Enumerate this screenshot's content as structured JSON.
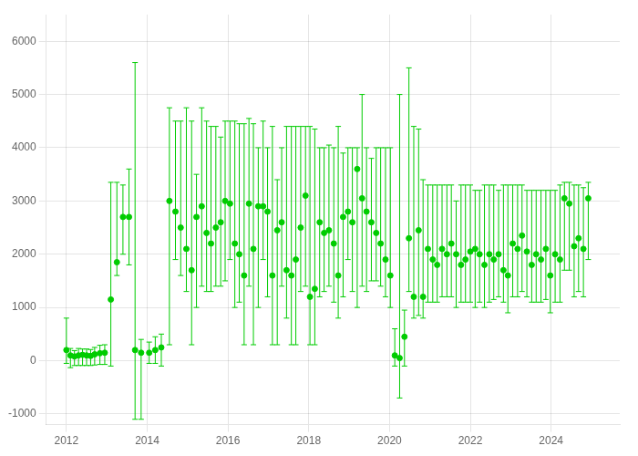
{
  "chart_data": {
    "type": "scatter",
    "x": [
      2012.0,
      2012.1,
      2012.2,
      2012.3,
      2012.4,
      2012.5,
      2012.6,
      2012.7,
      2012.83,
      2012.95,
      2013.1,
      2013.25,
      2013.4,
      2013.55,
      2013.7,
      2013.85,
      2014.05,
      2014.2,
      2014.35,
      2014.55,
      2014.7,
      2014.83,
      2014.97,
      2015.1,
      2015.22,
      2015.35,
      2015.47,
      2015.58,
      2015.7,
      2015.82,
      2015.93,
      2016.05,
      2016.17,
      2016.28,
      2016.4,
      2016.52,
      2016.63,
      2016.75,
      2016.87,
      2016.98,
      2017.1,
      2017.22,
      2017.33,
      2017.45,
      2017.57,
      2017.68,
      2017.8,
      2017.92,
      2018.03,
      2018.15,
      2018.27,
      2018.38,
      2018.5,
      2018.62,
      2018.73,
      2018.85,
      2018.97,
      2019.08,
      2019.2,
      2019.32,
      2019.43,
      2019.55,
      2019.67,
      2019.78,
      2019.9,
      2020.02,
      2020.13,
      2020.25,
      2020.37,
      2020.48,
      2020.6,
      2020.72,
      2020.83,
      2020.95,
      2021.07,
      2021.18,
      2021.3,
      2021.42,
      2021.53,
      2021.65,
      2021.77,
      2021.88,
      2022.0,
      2022.12,
      2022.23,
      2022.35,
      2022.47,
      2022.58,
      2022.7,
      2022.82,
      2022.93,
      2023.05,
      2023.17,
      2023.28,
      2023.4,
      2023.52,
      2023.63,
      2023.75,
      2023.87,
      2023.98,
      2024.1,
      2024.22,
      2024.33,
      2024.45,
      2024.57,
      2024.68,
      2024.8,
      2024.92
    ],
    "values": [
      200,
      100,
      80,
      100,
      110,
      100,
      90,
      120,
      140,
      150,
      1150,
      1850,
      2700,
      2700,
      200,
      150,
      150,
      200,
      250,
      3000,
      2800,
      2500,
      2100,
      1700,
      2700,
      2900,
      2400,
      2200,
      2500,
      2600,
      3000,
      2950,
      2200,
      2000,
      1600,
      2950,
      2100,
      2900,
      2900,
      2800,
      1600,
      2450,
      2600,
      1700,
      1600,
      1900,
      2500,
      3100,
      1200,
      1350,
      2600,
      2400,
      2450,
      2200,
      1600,
      2700,
      2800,
      2600,
      3600,
      3050,
      2800,
      2600,
      2400,
      2200,
      1900,
      1600,
      100,
      50,
      450,
      2300,
      1200,
      2450,
      1200,
      2100,
      1900,
      1800,
      2100,
      2000,
      2200,
      2000,
      1800,
      1900,
      2050,
      2100,
      2000,
      1800,
      2000,
      1900,
      2000,
      1700,
      1600,
      2200,
      2100,
      2350,
      2050,
      1800,
      2000,
      1900,
      2100,
      1600,
      2000,
      1900,
      3050,
      2950,
      2150,
      2300,
      2100,
      3050
    ],
    "yerr_lo": [
      250,
      230,
      170,
      190,
      200,
      190,
      180,
      200,
      210,
      220,
      1250,
      250,
      700,
      900,
      1300,
      1250,
      200,
      250,
      350,
      2700,
      900,
      900,
      800,
      1400,
      1700,
      1500,
      1100,
      900,
      1100,
      1200,
      1500,
      1050,
      1200,
      900,
      1300,
      1550,
      1800,
      1900,
      1000,
      1600,
      1300,
      2150,
      1200,
      900,
      1300,
      1600,
      1200,
      1700,
      900,
      1050,
      1400,
      1100,
      1050,
      1100,
      800,
      1500,
      900,
      1300,
      2600,
      1650,
      1500,
      1100,
      900,
      800,
      700,
      600,
      200,
      750,
      550,
      1000,
      400,
      1600,
      400,
      1000,
      800,
      700,
      900,
      800,
      1000,
      1000,
      700,
      800,
      950,
      1100,
      900,
      800,
      900,
      750,
      800,
      600,
      700,
      1000,
      900,
      1050,
      850,
      700,
      900,
      800,
      950,
      700,
      900,
      800,
      1350,
      1250,
      950,
      1000,
      900,
      1150
    ],
    "yerr_hi": [
      600,
      130,
      110,
      130,
      110,
      120,
      120,
      130,
      150,
      150,
      2200,
      1500,
      600,
      900,
      5400,
      250,
      200,
      250,
      250,
      1750,
      1700,
      2000,
      2650,
      2800,
      800,
      1850,
      2100,
      2200,
      1900,
      1600,
      1500,
      1550,
      2300,
      2450,
      2850,
      1600,
      2350,
      1100,
      1600,
      1200,
      2800,
      950,
      1400,
      2700,
      2800,
      2500,
      1900,
      1300,
      3200,
      3000,
      1400,
      1600,
      1600,
      1800,
      2800,
      1200,
      1200,
      1400,
      400,
      1950,
      1200,
      1200,
      1600,
      1800,
      2100,
      2400,
      500,
      4950,
      500,
      3200,
      3200,
      1900,
      2200,
      1200,
      1400,
      1500,
      1200,
      1300,
      1100,
      1000,
      1500,
      1400,
      1250,
      1100,
      1200,
      1500,
      1300,
      1400,
      1200,
      1600,
      1700,
      1100,
      1200,
      950,
      1150,
      1400,
      1200,
      1300,
      1100,
      1600,
      1200,
      1400,
      300,
      400,
      1150,
      1000,
      1150,
      300
    ],
    "color": "#00cc00",
    "marker": "circle",
    "xlim": [
      2011.5,
      2025.7
    ],
    "ylim": [
      -1200,
      6500
    ],
    "xticks": [
      2012,
      2014,
      2016,
      2018,
      2020,
      2022,
      2024
    ],
    "yticks": [
      -1000,
      0,
      1000,
      2000,
      3000,
      4000,
      5000,
      6000
    ],
    "grid": true
  }
}
